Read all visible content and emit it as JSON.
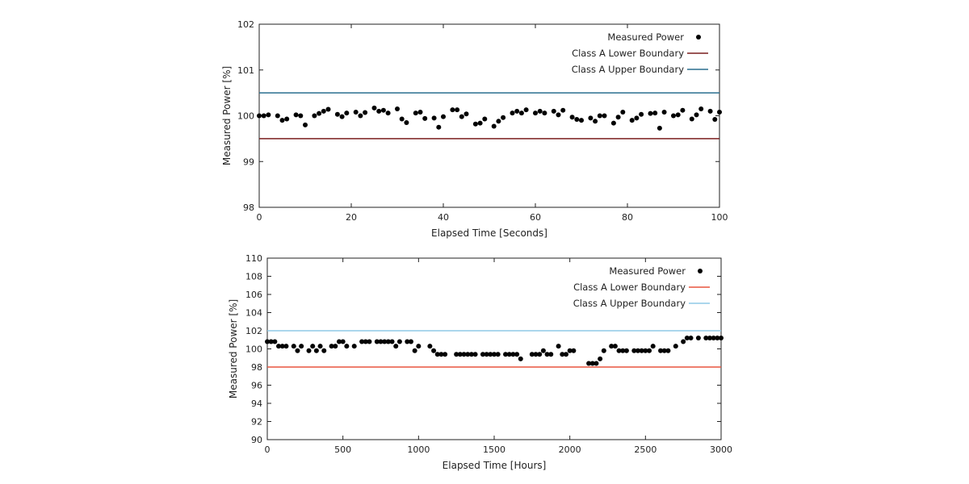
{
  "chart_data": [
    {
      "type": "scatter",
      "xlabel": "Elapsed Time [Seconds]",
      "ylabel": "Measured Power [%]",
      "xlim": [
        0,
        100
      ],
      "ylim": [
        98,
        102
      ],
      "xticks": [
        0,
        20,
        40,
        60,
        80,
        100
      ],
      "yticks": [
        98,
        99,
        100,
        101,
        102
      ],
      "grid": false,
      "legend_position": "top-right",
      "series": [
        {
          "name": "Measured Power",
          "type": "scatter",
          "color": "#000000",
          "x": [
            0,
            1,
            2,
            4,
            5,
            6,
            8,
            9,
            10,
            12,
            13,
            14,
            15,
            17,
            18,
            19,
            21,
            22,
            23,
            25,
            26,
            27,
            28,
            30,
            31,
            32,
            34,
            35,
            36,
            38,
            39,
            40,
            42,
            43,
            44,
            45,
            47,
            48,
            49,
            51,
            52,
            53,
            55,
            56,
            57,
            58,
            60,
            61,
            62,
            64,
            65,
            66,
            68,
            69,
            70,
            72,
            73,
            74,
            75,
            77,
            78,
            79,
            81,
            82,
            83,
            85,
            86,
            87,
            88,
            90,
            91,
            92,
            94,
            95,
            96,
            98,
            99,
            100
          ],
          "y": [
            100.0,
            100.0,
            100.02,
            100.0,
            99.9,
            99.93,
            100.02,
            100.0,
            99.8,
            100.0,
            100.05,
            100.1,
            100.14,
            100.03,
            99.98,
            100.06,
            100.08,
            100.0,
            100.07,
            100.17,
            100.1,
            100.12,
            100.06,
            100.15,
            99.93,
            99.85,
            100.06,
            100.08,
            99.94,
            99.95,
            99.75,
            99.98,
            100.13,
            100.13,
            99.98,
            100.04,
            99.82,
            99.84,
            99.93,
            99.77,
            99.88,
            99.96,
            100.06,
            100.1,
            100.06,
            100.13,
            100.06,
            100.1,
            100.06,
            100.1,
            100.02,
            100.12,
            99.97,
            99.92,
            99.9,
            99.95,
            99.88,
            100.0,
            100.0,
            99.84,
            99.97,
            100.08,
            99.9,
            99.95,
            100.03,
            100.05,
            100.06,
            99.73,
            100.08,
            100.0,
            100.02,
            100.12,
            99.93,
            100.02,
            100.15,
            100.1,
            99.92,
            100.08
          ]
        },
        {
          "name": "Class A Lower Boundary",
          "type": "line",
          "color": "#7a1e1e",
          "x": [
            0,
            100
          ],
          "y": [
            99.5,
            99.5
          ]
        },
        {
          "name": "Class A Upper Boundary",
          "type": "line",
          "color": "#2a6f8f",
          "x": [
            0,
            100
          ],
          "y": [
            100.5,
            100.5
          ]
        }
      ]
    },
    {
      "type": "scatter",
      "xlabel": "Elapsed Time [Hours]",
      "ylabel": "Measured Power [%]",
      "xlim": [
        0,
        3000
      ],
      "ylim": [
        90,
        110
      ],
      "xticks": [
        0,
        500,
        1000,
        1500,
        2000,
        2500,
        3000
      ],
      "yticks": [
        90,
        92,
        94,
        96,
        98,
        100,
        102,
        104,
        106,
        108,
        110
      ],
      "grid": false,
      "legend_position": "top-right",
      "series": [
        {
          "name": "Measured Power",
          "type": "scatter",
          "color": "#000000",
          "x": [
            0,
            25,
            50,
            75,
            100,
            125,
            175,
            200,
            225,
            275,
            300,
            325,
            350,
            375,
            425,
            450,
            475,
            500,
            525,
            575,
            625,
            650,
            675,
            725,
            750,
            775,
            800,
            825,
            850,
            875,
            925,
            950,
            975,
            1000,
            1075,
            1100,
            1125,
            1150,
            1175,
            1250,
            1275,
            1300,
            1325,
            1350,
            1375,
            1425,
            1450,
            1475,
            1500,
            1525,
            1575,
            1600,
            1625,
            1650,
            1675,
            1750,
            1775,
            1800,
            1825,
            1850,
            1875,
            1925,
            1950,
            1975,
            2000,
            2025,
            2125,
            2150,
            2175,
            2200,
            2225,
            2275,
            2300,
            2325,
            2350,
            2375,
            2425,
            2450,
            2475,
            2500,
            2525,
            2550,
            2600,
            2625,
            2650,
            2700,
            2750,
            2775,
            2800,
            2850,
            2900,
            2925,
            2950,
            2975,
            3000
          ],
          "y": [
            100.8,
            100.8,
            100.8,
            100.3,
            100.3,
            100.3,
            100.3,
            99.8,
            100.3,
            99.8,
            100.3,
            99.8,
            100.3,
            99.8,
            100.3,
            100.3,
            100.8,
            100.8,
            100.3,
            100.3,
            100.8,
            100.8,
            100.8,
            100.8,
            100.8,
            100.8,
            100.8,
            100.8,
            100.3,
            100.8,
            100.8,
            100.8,
            99.8,
            100.3,
            100.3,
            99.8,
            99.4,
            99.4,
            99.4,
            99.4,
            99.4,
            99.4,
            99.4,
            99.4,
            99.4,
            99.4,
            99.4,
            99.4,
            99.4,
            99.4,
            99.4,
            99.4,
            99.4,
            99.4,
            98.9,
            99.4,
            99.4,
            99.4,
            99.8,
            99.4,
            99.4,
            100.3,
            99.4,
            99.4,
            99.8,
            99.8,
            98.4,
            98.4,
            98.4,
            98.9,
            99.8,
            100.3,
            100.3,
            99.8,
            99.8,
            99.8,
            99.8,
            99.8,
            99.8,
            99.8,
            99.8,
            100.3,
            99.8,
            99.8,
            99.8,
            100.3,
            100.8,
            101.2,
            101.2,
            101.2,
            101.2,
            101.2,
            101.2,
            101.2,
            101.2
          ]
        },
        {
          "name": "Class A Lower Boundary",
          "type": "line",
          "color": "#e8553f",
          "x": [
            0,
            3000
          ],
          "y": [
            98,
            98
          ]
        },
        {
          "name": "Class A Upper Boundary",
          "type": "line",
          "color": "#8fc8e6",
          "x": [
            0,
            3000
          ],
          "y": [
            102,
            102
          ]
        }
      ]
    }
  ]
}
